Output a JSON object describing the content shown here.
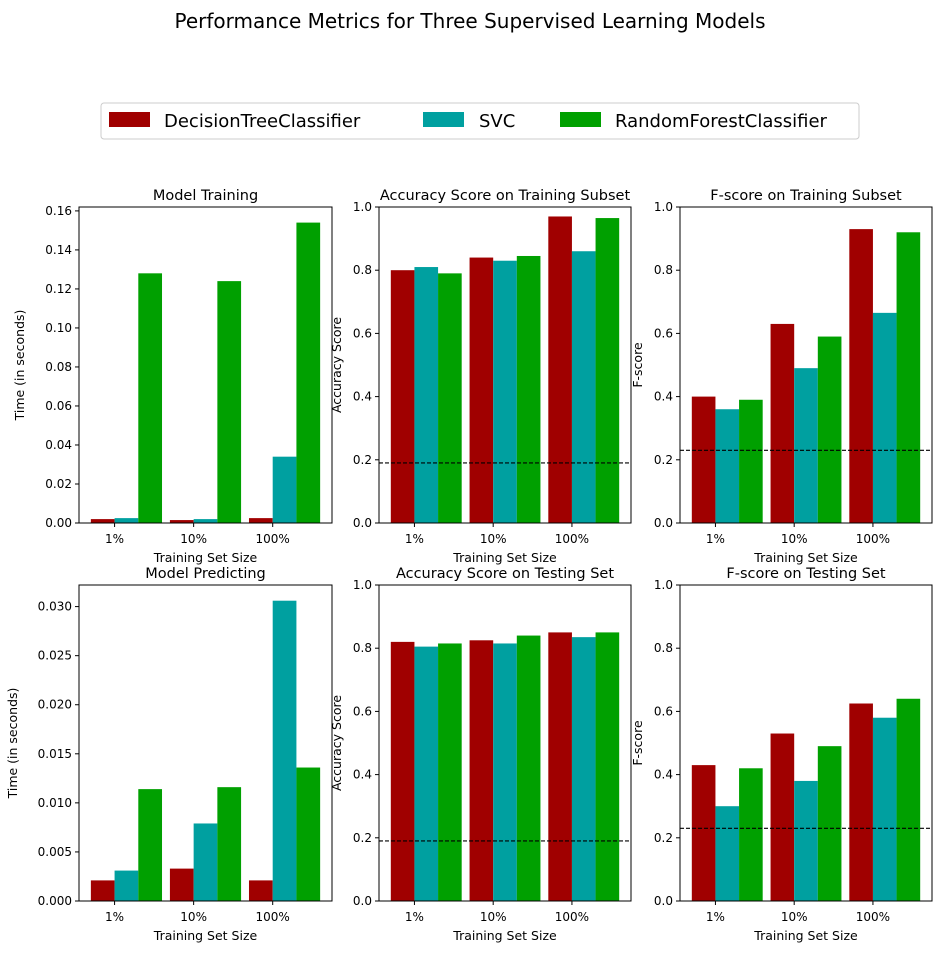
{
  "figure": {
    "suptitle": "Performance Metrics for Three Supervised Learning Models"
  },
  "legend": {
    "placement": "top-center",
    "items": [
      {
        "label": "DecisionTreeClassifier",
        "color": "#A00000"
      },
      {
        "label": "SVC",
        "color": "#00A0A0"
      },
      {
        "label": "RandomForestClassifier",
        "color": "#00A000"
      }
    ]
  },
  "chart_data": [
    {
      "type": "bar",
      "title": "Model Training",
      "xlabel": "Training Set Size",
      "ylabel": "Time (in seconds)",
      "categories": [
        "1%",
        "10%",
        "100%"
      ],
      "ylim": [
        0,
        0.162
      ],
      "yticks": [
        "0.00",
        "0.02",
        "0.04",
        "0.06",
        "0.08",
        "0.10",
        "0.12",
        "0.14",
        "0.16"
      ],
      "series": [
        {
          "name": "DecisionTreeClassifier",
          "values": [
            0.002,
            0.0015,
            0.0025
          ]
        },
        {
          "name": "SVC",
          "values": [
            0.0025,
            0.002,
            0.034
          ]
        },
        {
          "name": "RandomForestClassifier",
          "values": [
            0.128,
            0.124,
            0.154
          ]
        }
      ]
    },
    {
      "type": "bar",
      "title": "Accuracy Score on Training Subset",
      "xlabel": "Training Set Size",
      "ylabel": "Accuracy Score",
      "categories": [
        "1%",
        "10%",
        "100%"
      ],
      "ylim": [
        0,
        1
      ],
      "yticks": [
        "0.0",
        "0.2",
        "0.4",
        "0.6",
        "0.8",
        "1.0"
      ],
      "baseline": 0.19,
      "series": [
        {
          "name": "DecisionTreeClassifier",
          "values": [
            0.8,
            0.84,
            0.97
          ]
        },
        {
          "name": "SVC",
          "values": [
            0.81,
            0.83,
            0.86
          ]
        },
        {
          "name": "RandomForestClassifier",
          "values": [
            0.79,
            0.845,
            0.965
          ]
        }
      ]
    },
    {
      "type": "bar",
      "title": "F-score on Training Subset",
      "xlabel": "Training Set Size",
      "ylabel": "F-score",
      "categories": [
        "1%",
        "10%",
        "100%"
      ],
      "ylim": [
        0,
        1
      ],
      "yticks": [
        "0.0",
        "0.2",
        "0.4",
        "0.6",
        "0.8",
        "1.0"
      ],
      "baseline": 0.23,
      "series": [
        {
          "name": "DecisionTreeClassifier",
          "values": [
            0.4,
            0.63,
            0.93
          ]
        },
        {
          "name": "SVC",
          "values": [
            0.36,
            0.49,
            0.665
          ]
        },
        {
          "name": "RandomForestClassifier",
          "values": [
            0.39,
            0.59,
            0.92
          ]
        }
      ]
    },
    {
      "type": "bar",
      "title": "Model Predicting",
      "xlabel": "Training Set Size",
      "ylabel": "Time (in seconds)",
      "categories": [
        "1%",
        "10%",
        "100%"
      ],
      "ylim": [
        0,
        0.0322
      ],
      "yticks": [
        "0.000",
        "0.005",
        "0.010",
        "0.015",
        "0.020",
        "0.025",
        "0.030"
      ],
      "series": [
        {
          "name": "DecisionTreeClassifier",
          "values": [
            0.0021,
            0.0033,
            0.0021
          ]
        },
        {
          "name": "SVC",
          "values": [
            0.0031,
            0.0079,
            0.0306
          ]
        },
        {
          "name": "RandomForestClassifier",
          "values": [
            0.0114,
            0.0116,
            0.0136
          ]
        }
      ]
    },
    {
      "type": "bar",
      "title": "Accuracy Score on Testing Set",
      "xlabel": "Training Set Size",
      "ylabel": "Accuracy Score",
      "categories": [
        "1%",
        "10%",
        "100%"
      ],
      "ylim": [
        0,
        1
      ],
      "yticks": [
        "0.0",
        "0.2",
        "0.4",
        "0.6",
        "0.8",
        "1.0"
      ],
      "baseline": 0.19,
      "series": [
        {
          "name": "DecisionTreeClassifier",
          "values": [
            0.82,
            0.825,
            0.85
          ]
        },
        {
          "name": "SVC",
          "values": [
            0.805,
            0.815,
            0.835
          ]
        },
        {
          "name": "RandomForestClassifier",
          "values": [
            0.815,
            0.84,
            0.85
          ]
        }
      ]
    },
    {
      "type": "bar",
      "title": "F-score on Testing Set",
      "xlabel": "Training Set Size",
      "ylabel": "F-score",
      "categories": [
        "1%",
        "10%",
        "100%"
      ],
      "ylim": [
        0,
        1
      ],
      "yticks": [
        "0.0",
        "0.2",
        "0.4",
        "0.6",
        "0.8",
        "1.0"
      ],
      "baseline": 0.23,
      "series": [
        {
          "name": "DecisionTreeClassifier",
          "values": [
            0.43,
            0.53,
            0.625
          ]
        },
        {
          "name": "SVC",
          "values": [
            0.3,
            0.38,
            0.58
          ]
        },
        {
          "name": "RandomForestClassifier",
          "values": [
            0.42,
            0.49,
            0.64
          ]
        }
      ]
    }
  ]
}
